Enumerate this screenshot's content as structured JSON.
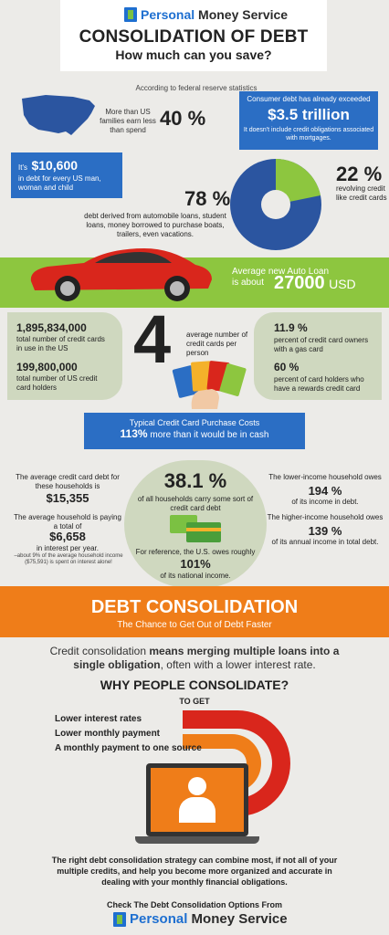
{
  "brand": {
    "name_part1": "Personal",
    "name_part2": "Money Service"
  },
  "header": {
    "title": "CONSOLIDATION OF DEBT",
    "subtitle": "How much can you save?"
  },
  "intro": {
    "source": "According to federal reserve statistics"
  },
  "stats1": {
    "families_text": "More than US families earn less than spend",
    "families_pct": "40 %",
    "consumer_debt_pre": "Consumer debt has already exceeded",
    "consumer_debt_value": "$3.5 trillion",
    "consumer_debt_post": "It doesn't include credit obligations associated with mortgages.",
    "per_person_pre": "It's",
    "per_person_value": "$10,600",
    "per_person_post": "in debt for every US man, woman and child",
    "pie_credit_pct": "22 %",
    "pie_credit_label": "revolving credit like credit cards",
    "pie_other_pct": "78 %",
    "pie_other_label": "debt derived from automobile loans, student loans, money borrowed to purchase boats, trailers, even vacations.",
    "pie_values": [
      22,
      78
    ]
  },
  "auto": {
    "line1": "Average new Auto Loan",
    "line2": "is about",
    "value": "27000",
    "unit": "USD"
  },
  "cards": {
    "total_cards_value": "1,895,834,000",
    "total_cards_label": "total number of credit cards in use in the US",
    "holders_value": "199,800,000",
    "holders_label": "total number of US credit card holders",
    "avg_value": "4",
    "avg_label": "average number of credit cards per person",
    "gas_value": "11.9 %",
    "gas_label": "percent of credit card owners with a gas card",
    "rewards_value": "60 %",
    "rewards_label": "percent of card holders who have a rewards credit card"
  },
  "purchase": {
    "title": "Typical Credit Card Purchase Costs",
    "value": "113%",
    "text": "more than it would be in cash"
  },
  "households": {
    "avg_debt_label": "The average credit card debt for these households is",
    "avg_debt_value": "$15,355",
    "interest_label": "The average household is paying a total of",
    "interest_value": "$6,658",
    "interest_post": "in interest per year.",
    "interest_note": "–about 9% of the average household income ($75,591) is spent on interest alone!",
    "carry_value": "38.1 %",
    "carry_label": "of all households carry some sort of credit card debt",
    "us_owes_label": "For reference, the U.S. owes roughly",
    "us_owes_value": "101%",
    "us_owes_post": "of its national income.",
    "lower_label": "The lower-income household owes",
    "lower_value": "194 %",
    "lower_post": "of its income in debt.",
    "higher_label": "The higher-income household owes",
    "higher_value": "139 %",
    "higher_post": "of its annual income in total debt."
  },
  "consolidation": {
    "title": "DEBT CONSOLIDATION",
    "subtitle": "The Chance to Get Out of Debt Faster",
    "def_pre": "Credit consolidation",
    "def_bold": "means merging multiple loans into a single obligation",
    "def_post": ", often with a lower interest rate.",
    "why": "WHY PEOPLE CONSOLIDATE?",
    "to_get": "TO GET",
    "reasons": [
      "Lower interest rates",
      "Lower monthly payment",
      "A monthly payment to one source"
    ],
    "closing": "The right debt consolidation strategy can combine most, if not all of your multiple credits, and help you become more organized and accurate in dealing with your monthly financial obligations."
  },
  "footer": {
    "cta": "Check The Debt Consolidation Options From"
  },
  "colors": {
    "blue": "#2b6ec4",
    "green": "#8dc63f",
    "orange": "#ef7d19",
    "red": "#d9261c"
  }
}
